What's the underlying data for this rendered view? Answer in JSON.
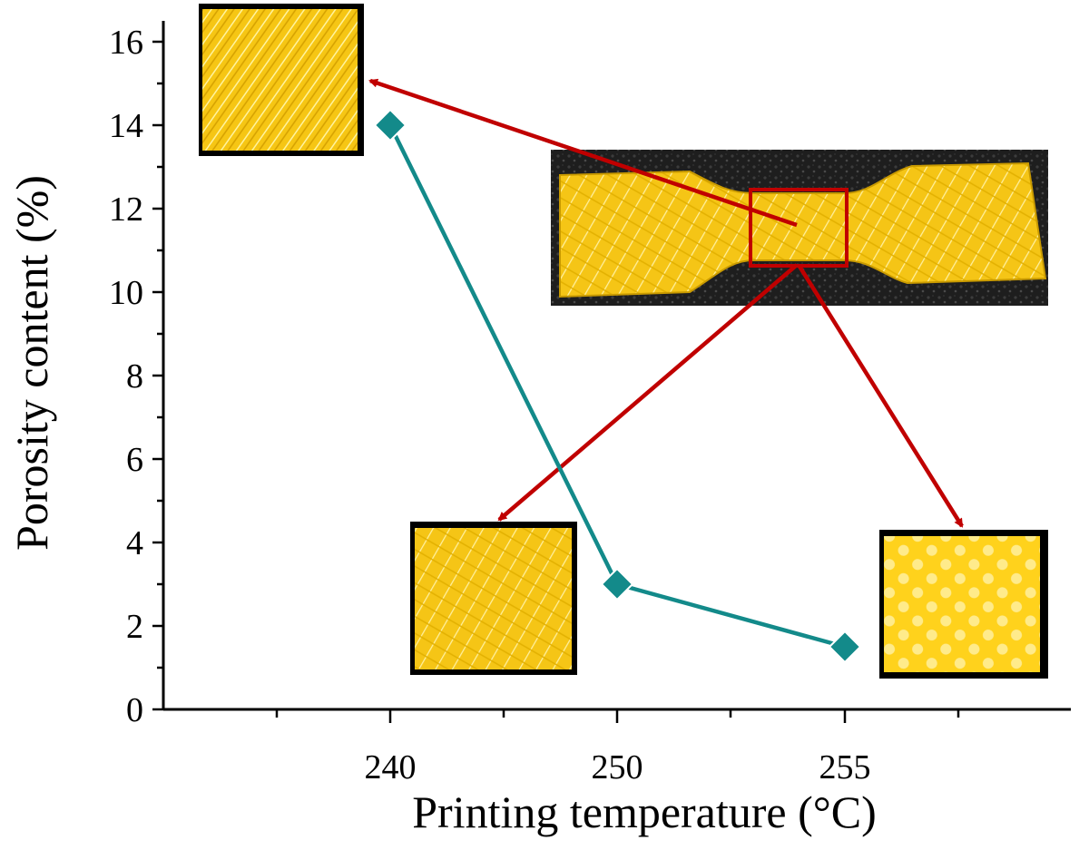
{
  "chart_data": {
    "type": "line",
    "title": "",
    "xlabel": "Printing temperature (°C)",
    "ylabel": "Porosity content (%)",
    "x_scale": "categorical",
    "categories": [
      "240",
      "250",
      "255"
    ],
    "series": [
      {
        "values": [
          14,
          3,
          1.5
        ],
        "color": "#138a8a",
        "marker": "diamond"
      }
    ],
    "ylim": [
      0,
      16.5
    ],
    "y_ticks": [
      "0",
      "2",
      "4",
      "6",
      "8",
      "10",
      "12",
      "14",
      "16"
    ],
    "grid": false,
    "legend": "none"
  },
  "colors": {
    "series": "#138a8a",
    "arrows": "#c00000",
    "specimen": "#f6c614",
    "photo_background": "#1e1e1e"
  }
}
